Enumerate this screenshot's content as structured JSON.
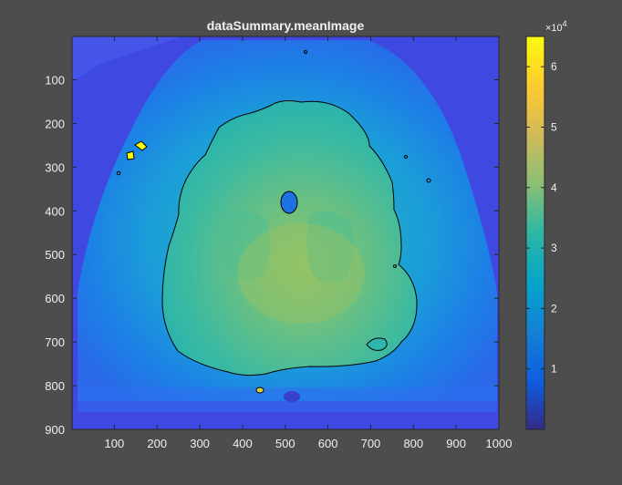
{
  "chart_data": {
    "type": "heatmap",
    "title": "dataSummary.meanImage",
    "xlim": [
      1,
      1000
    ],
    "ylim": [
      1,
      900
    ],
    "y_axis_direction": "reversed",
    "x_ticks": [
      100,
      200,
      300,
      400,
      500,
      600,
      700,
      800,
      900,
      1000
    ],
    "y_ticks": [
      100,
      200,
      300,
      400,
      500,
      600,
      700,
      800,
      900
    ],
    "colorbar": {
      "colormap": "parula",
      "range": [
        0,
        65000
      ],
      "tick_values": [
        10000,
        20000,
        30000,
        40000,
        50000,
        60000
      ],
      "tick_labels": [
        "1",
        "2",
        "3",
        "4",
        "5",
        "6"
      ],
      "exponent_base": "×10",
      "exponent_power": "4"
    },
    "contour_color": "#000000",
    "grid": false,
    "description_regions": {
      "background_level": 15000,
      "frame_level": 25000,
      "brain_level": 42000,
      "saturated_spots_level": 65000
    }
  }
}
